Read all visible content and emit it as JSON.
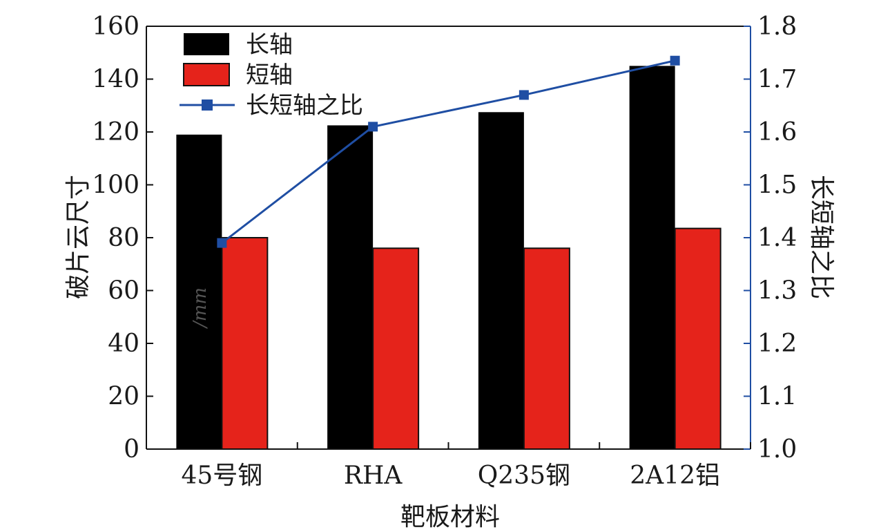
{
  "chart_data": {
    "type": "bar",
    "categories": [
      "45号钢",
      "RHA",
      "Q235钢",
      "2A12铝"
    ],
    "series": [
      {
        "name": "长轴",
        "values": [
          119,
          122.5,
          127.5,
          145
        ],
        "axis": "left",
        "color": "#000000"
      },
      {
        "name": "短轴",
        "values": [
          80,
          76,
          76,
          83.5
        ],
        "axis": "left",
        "color": "#e5231b"
      }
    ],
    "line_series": [
      {
        "name": "长短轴之比",
        "values": [
          1.39,
          1.61,
          1.67,
          1.735
        ],
        "axis": "right",
        "color": "#1f4ea3"
      }
    ],
    "xlabel": "靶板材料",
    "ylabel": "破片云尺寸",
    "ylabel_unit": "/mm",
    "y2label": "长短轴之比",
    "ylim": [
      0,
      160
    ],
    "yticks": [
      "0",
      "20",
      "40",
      "60",
      "80",
      "100",
      "120",
      "140",
      "160"
    ],
    "y2lim": [
      1.0,
      1.8
    ],
    "y2ticks": [
      "1.0",
      "1.1",
      "1.2",
      "1.3",
      "1.4",
      "1.5",
      "1.6",
      "1.7",
      "1.8"
    ],
    "legend_position": "top-left",
    "grid": false
  }
}
